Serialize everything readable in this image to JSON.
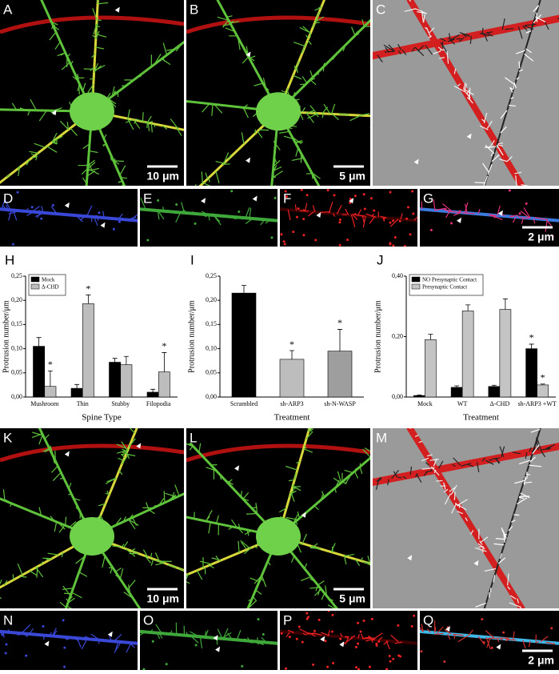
{
  "panels": [
    {
      "letter": "A",
      "scale_bar": "10 μm"
    },
    {
      "letter": "B",
      "scale_bar": "5 μm"
    },
    {
      "letter": "C"
    },
    {
      "letter": "D"
    },
    {
      "letter": "E"
    },
    {
      "letter": "F"
    },
    {
      "letter": "G",
      "scale_bar": "2 μm"
    },
    {
      "letter": "K",
      "scale_bar": "10 μm"
    },
    {
      "letter": "L",
      "scale_bar": "5 μm"
    },
    {
      "letter": "M"
    },
    {
      "letter": "N"
    },
    {
      "letter": "O"
    },
    {
      "letter": "P"
    },
    {
      "letter": "Q",
      "scale_bar": "2 μm"
    }
  ],
  "chart_data": [
    {
      "type": "bar",
      "panel": "H",
      "xlabel": "Spine Type",
      "ylabel": "Protrusion number/μm",
      "categories": [
        "Mushroom",
        "Thin",
        "Stubby",
        "Filopodia"
      ],
      "series": [
        {
          "name": "Mock",
          "color": "#000000",
          "values": [
            0.105,
            0.018,
            0.072,
            0.01
          ],
          "errors": [
            0.018,
            0.008,
            0.008,
            0.006
          ],
          "annotations": [
            null,
            null,
            null,
            null
          ]
        },
        {
          "name": "Δ-CHD",
          "color": "#bdbdbd",
          "values": [
            0.022,
            0.193,
            0.067,
            0.052
          ],
          "errors": [
            0.032,
            0.018,
            0.017,
            0.04
          ],
          "annotations": [
            "*",
            "*",
            null,
            "*"
          ]
        }
      ],
      "ylim": [
        0,
        0.25
      ],
      "yticks": [
        {
          "value": 0,
          "label": "0,00"
        },
        {
          "value": 0.05,
          "label": "0,05"
        },
        {
          "value": 0.1,
          "label": "0,10"
        },
        {
          "value": 0.15,
          "label": "0,15"
        },
        {
          "value": 0.2,
          "label": "0,20"
        },
        {
          "value": 0.25,
          "label": "0,25"
        }
      ],
      "legend": "upper left"
    },
    {
      "type": "bar",
      "panel": "I",
      "xlabel": "Treatment",
      "ylabel": "Protrusion number/μm",
      "categories": [
        "Scrambled",
        "sh-ARP3",
        "sh-N-WASP"
      ],
      "values": [
        0.215,
        0.078,
        0.095
      ],
      "errors": [
        0.016,
        0.018,
        0.045
      ],
      "annotations": [
        null,
        "*",
        "*"
      ],
      "colors": [
        "#000000",
        "#bdbdbd",
        "#9e9e9e"
      ],
      "ylim": [
        0,
        0.25
      ],
      "yticks": [
        {
          "value": 0,
          "label": "0,00"
        },
        {
          "value": 0.05,
          "label": "0,05"
        },
        {
          "value": 0.1,
          "label": "0,10"
        },
        {
          "value": 0.15,
          "label": "0,15"
        },
        {
          "value": 0.2,
          "label": "0,20"
        },
        {
          "value": 0.25,
          "label": "0,25"
        }
      ]
    },
    {
      "type": "bar",
      "panel": "J",
      "xlabel": "Treatment",
      "ylabel": "Protrusion number/μm",
      "categories": [
        "Mock",
        "WT",
        "Δ-CHD",
        "sh-ARP3 +WT"
      ],
      "series": [
        {
          "name": "NO Presynaptic Contact",
          "color": "#000000",
          "values": [
            0.005,
            0.032,
            0.035,
            0.16
          ],
          "errors": [
            0.002,
            0.005,
            0.004,
            0.015
          ],
          "annotations": [
            null,
            null,
            null,
            "*"
          ]
        },
        {
          "name": "Presynaptic Contact",
          "color": "#c4c4c4",
          "values": [
            0.19,
            0.285,
            0.29,
            0.04
          ],
          "errors": [
            0.018,
            0.02,
            0.035,
            0.003
          ],
          "annotations": [
            null,
            null,
            null,
            "*"
          ]
        }
      ],
      "ylim": [
        0,
        0.4
      ],
      "yticks": [
        {
          "value": 0,
          "label": "0,00"
        },
        {
          "value": 0.2,
          "label": "0,20"
        },
        {
          "value": 0.4,
          "label": "0,40"
        }
      ],
      "legend": "upper left"
    }
  ]
}
